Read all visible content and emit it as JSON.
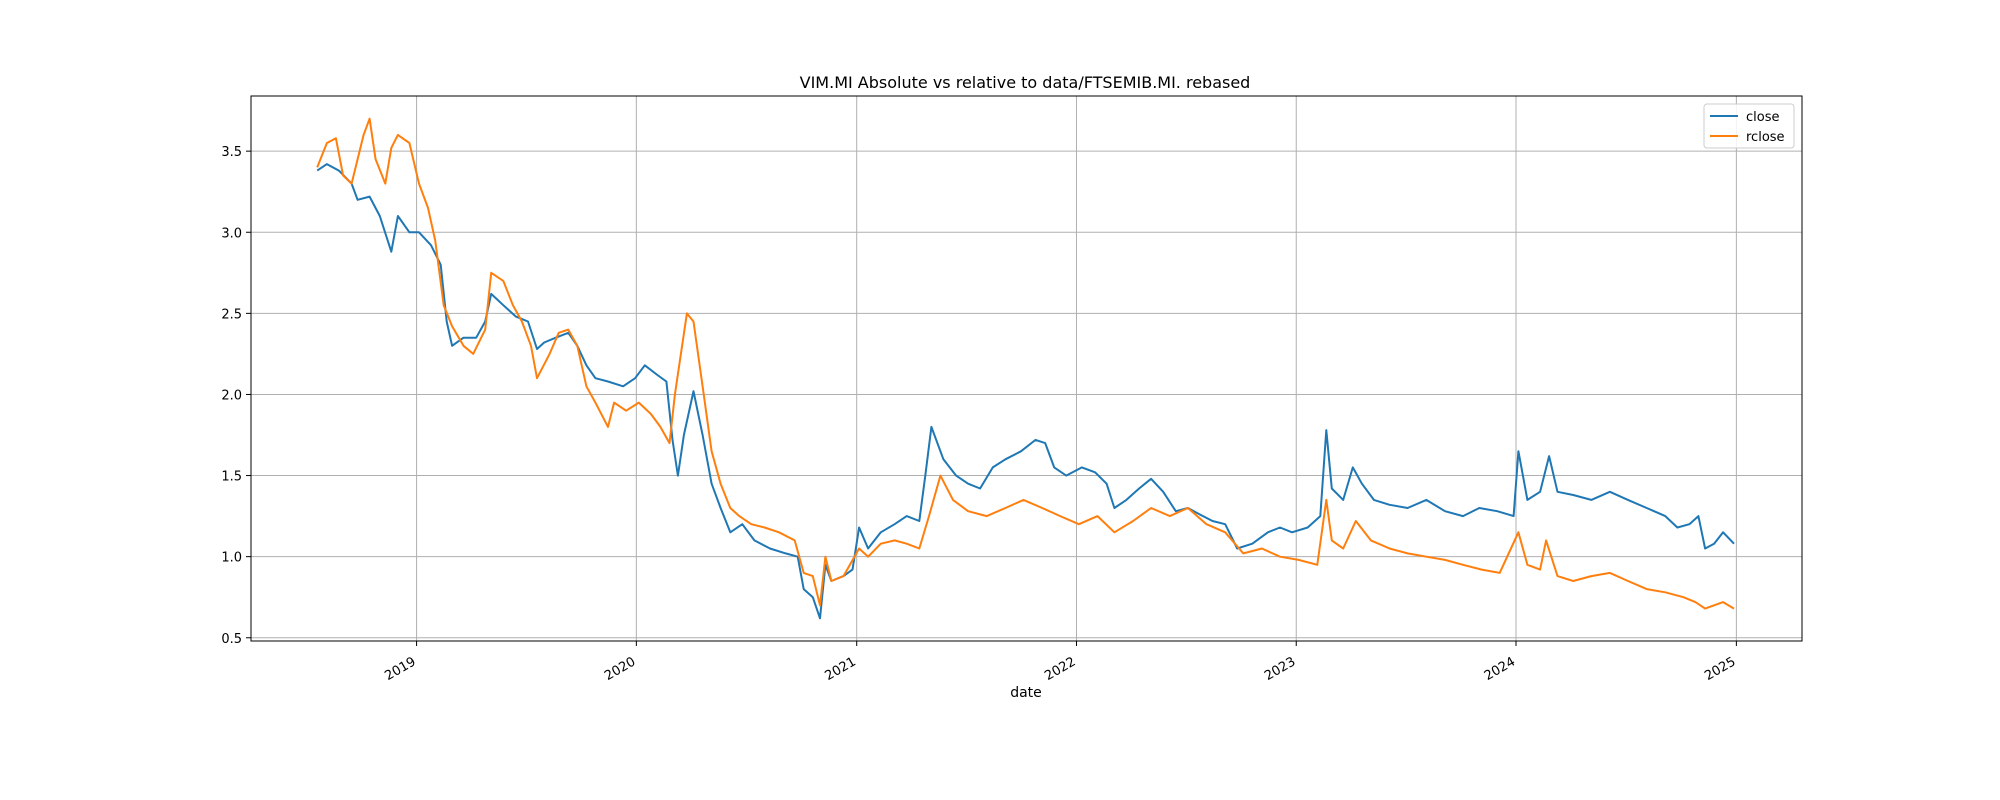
{
  "chart_data": {
    "type": "line",
    "title": "VIM.MI Absolute vs relative to data/FTSEMIB.MI. rebased",
    "xlabel": "date",
    "ylabel": "",
    "xlim": [
      "2018-04-01",
      "2025-04-20"
    ],
    "ylim": [
      0.48,
      3.84
    ],
    "x_ticks": [
      "2019-01-01",
      "2020-01-01",
      "2021-01-01",
      "2022-01-01",
      "2023-01-01",
      "2024-01-01",
      "2025-01-01"
    ],
    "x_tick_labels": [
      "2019",
      "2020",
      "2021",
      "2022",
      "2023",
      "2024",
      "2025"
    ],
    "y_ticks": [
      0.5,
      1.0,
      1.5,
      2.0,
      2.5,
      3.0,
      3.5
    ],
    "y_tick_labels": [
      "0.5",
      "1.0",
      "1.5",
      "2.0",
      "2.5",
      "3.0",
      "3.5"
    ],
    "grid": true,
    "legend_position": "top-right",
    "series": [
      {
        "name": "close",
        "color": "#1f77b4",
        "points": [
          [
            "2018-07-20",
            3.38
          ],
          [
            "2018-08-05",
            3.42
          ],
          [
            "2018-08-25",
            3.38
          ],
          [
            "2018-09-15",
            3.3
          ],
          [
            "2018-09-25",
            3.2
          ],
          [
            "2018-10-15",
            3.22
          ],
          [
            "2018-11-01",
            3.1
          ],
          [
            "2018-11-20",
            2.88
          ],
          [
            "2018-12-01",
            3.1
          ],
          [
            "2018-12-20",
            3.0
          ],
          [
            "2019-01-05",
            3.0
          ],
          [
            "2019-01-25",
            2.92
          ],
          [
            "2019-02-10",
            2.8
          ],
          [
            "2019-02-20",
            2.45
          ],
          [
            "2019-03-01",
            2.3
          ],
          [
            "2019-03-20",
            2.35
          ],
          [
            "2019-04-10",
            2.35
          ],
          [
            "2019-04-25",
            2.45
          ],
          [
            "2019-05-05",
            2.62
          ],
          [
            "2019-05-25",
            2.55
          ],
          [
            "2019-06-15",
            2.48
          ],
          [
            "2019-07-05",
            2.45
          ],
          [
            "2019-07-20",
            2.28
          ],
          [
            "2019-08-01",
            2.32
          ],
          [
            "2019-08-20",
            2.35
          ],
          [
            "2019-09-10",
            2.38
          ],
          [
            "2019-09-25",
            2.3
          ],
          [
            "2019-10-10",
            2.18
          ],
          [
            "2019-10-25",
            2.1
          ],
          [
            "2019-11-15",
            2.08
          ],
          [
            "2019-12-10",
            2.05
          ],
          [
            "2019-12-30",
            2.1
          ],
          [
            "2020-01-15",
            2.18
          ],
          [
            "2020-02-05",
            2.12
          ],
          [
            "2020-02-20",
            2.08
          ],
          [
            "2020-03-01",
            1.72
          ],
          [
            "2020-03-10",
            1.5
          ],
          [
            "2020-03-20",
            1.75
          ],
          [
            "2020-04-05",
            2.02
          ],
          [
            "2020-04-20",
            1.75
          ],
          [
            "2020-05-05",
            1.45
          ],
          [
            "2020-05-20",
            1.3
          ],
          [
            "2020-06-05",
            1.15
          ],
          [
            "2020-06-25",
            1.2
          ],
          [
            "2020-07-15",
            1.1
          ],
          [
            "2020-08-10",
            1.05
          ],
          [
            "2020-09-05",
            1.02
          ],
          [
            "2020-09-25",
            1.0
          ],
          [
            "2020-10-05",
            0.8
          ],
          [
            "2020-10-20",
            0.75
          ],
          [
            "2020-11-01",
            0.62
          ],
          [
            "2020-11-10",
            0.95
          ],
          [
            "2020-11-20",
            0.85
          ],
          [
            "2020-12-10",
            0.88
          ],
          [
            "2020-12-25",
            0.92
          ],
          [
            "2021-01-05",
            1.18
          ],
          [
            "2021-01-20",
            1.05
          ],
          [
            "2021-02-10",
            1.15
          ],
          [
            "2021-03-05",
            1.2
          ],
          [
            "2021-03-25",
            1.25
          ],
          [
            "2021-04-15",
            1.22
          ],
          [
            "2021-04-25",
            1.5
          ],
          [
            "2021-05-05",
            1.8
          ],
          [
            "2021-05-25",
            1.6
          ],
          [
            "2021-06-15",
            1.5
          ],
          [
            "2021-07-05",
            1.45
          ],
          [
            "2021-07-25",
            1.42
          ],
          [
            "2021-08-15",
            1.55
          ],
          [
            "2021-09-05",
            1.6
          ],
          [
            "2021-10-01",
            1.65
          ],
          [
            "2021-10-25",
            1.72
          ],
          [
            "2021-11-10",
            1.7
          ],
          [
            "2021-11-25",
            1.55
          ],
          [
            "2021-12-15",
            1.5
          ],
          [
            "2022-01-10",
            1.55
          ],
          [
            "2022-02-01",
            1.52
          ],
          [
            "2022-02-20",
            1.45
          ],
          [
            "2022-03-05",
            1.3
          ],
          [
            "2022-03-25",
            1.35
          ],
          [
            "2022-04-15",
            1.42
          ],
          [
            "2022-05-05",
            1.48
          ],
          [
            "2022-05-25",
            1.4
          ],
          [
            "2022-06-15",
            1.28
          ],
          [
            "2022-07-05",
            1.3
          ],
          [
            "2022-07-25",
            1.26
          ],
          [
            "2022-08-15",
            1.22
          ],
          [
            "2022-09-05",
            1.2
          ],
          [
            "2022-09-25",
            1.05
          ],
          [
            "2022-10-20",
            1.08
          ],
          [
            "2022-11-15",
            1.15
          ],
          [
            "2022-12-05",
            1.18
          ],
          [
            "2022-12-25",
            1.15
          ],
          [
            "2023-01-20",
            1.18
          ],
          [
            "2023-02-10",
            1.25
          ],
          [
            "2023-02-20",
            1.78
          ],
          [
            "2023-03-01",
            1.42
          ],
          [
            "2023-03-20",
            1.35
          ],
          [
            "2023-04-05",
            1.55
          ],
          [
            "2023-04-20",
            1.45
          ],
          [
            "2023-05-10",
            1.35
          ],
          [
            "2023-06-05",
            1.32
          ],
          [
            "2023-07-05",
            1.3
          ],
          [
            "2023-08-05",
            1.35
          ],
          [
            "2023-09-05",
            1.28
          ],
          [
            "2023-10-05",
            1.25
          ],
          [
            "2023-11-01",
            1.3
          ],
          [
            "2023-12-01",
            1.28
          ],
          [
            "2023-12-28",
            1.25
          ],
          [
            "2024-01-05",
            1.65
          ],
          [
            "2024-01-20",
            1.35
          ],
          [
            "2024-02-10",
            1.4
          ],
          [
            "2024-02-25",
            1.62
          ],
          [
            "2024-03-10",
            1.4
          ],
          [
            "2024-04-05",
            1.38
          ],
          [
            "2024-05-05",
            1.35
          ],
          [
            "2024-06-05",
            1.4
          ],
          [
            "2024-07-05",
            1.35
          ],
          [
            "2024-08-05",
            1.3
          ],
          [
            "2024-09-05",
            1.25
          ],
          [
            "2024-09-25",
            1.18
          ],
          [
            "2024-10-15",
            1.2
          ],
          [
            "2024-10-30",
            1.25
          ],
          [
            "2024-11-10",
            1.05
          ],
          [
            "2024-11-25",
            1.08
          ],
          [
            "2024-12-10",
            1.15
          ],
          [
            "2024-12-28",
            1.08
          ]
        ]
      },
      {
        "name": "rclose",
        "color": "#ff7f0e",
        "points": [
          [
            "2018-07-20",
            3.4
          ],
          [
            "2018-08-05",
            3.55
          ],
          [
            "2018-08-20",
            3.58
          ],
          [
            "2018-09-01",
            3.35
          ],
          [
            "2018-09-15",
            3.3
          ],
          [
            "2018-09-25",
            3.45
          ],
          [
            "2018-10-05",
            3.6
          ],
          [
            "2018-10-15",
            3.7
          ],
          [
            "2018-10-25",
            3.45
          ],
          [
            "2018-11-10",
            3.3
          ],
          [
            "2018-11-20",
            3.52
          ],
          [
            "2018-12-01",
            3.6
          ],
          [
            "2018-12-20",
            3.55
          ],
          [
            "2019-01-05",
            3.3
          ],
          [
            "2019-01-20",
            3.15
          ],
          [
            "2019-02-01",
            2.95
          ],
          [
            "2019-02-15",
            2.55
          ],
          [
            "2019-03-01",
            2.42
          ],
          [
            "2019-03-20",
            2.3
          ],
          [
            "2019-04-05",
            2.25
          ],
          [
            "2019-04-25",
            2.4
          ],
          [
            "2019-05-05",
            2.75
          ],
          [
            "2019-05-25",
            2.7
          ],
          [
            "2019-06-10",
            2.55
          ],
          [
            "2019-06-25",
            2.45
          ],
          [
            "2019-07-10",
            2.3
          ],
          [
            "2019-07-20",
            2.1
          ],
          [
            "2019-08-10",
            2.25
          ],
          [
            "2019-08-25",
            2.38
          ],
          [
            "2019-09-10",
            2.4
          ],
          [
            "2019-09-25",
            2.3
          ],
          [
            "2019-10-10",
            2.05
          ],
          [
            "2019-10-25",
            1.95
          ],
          [
            "2019-11-15",
            1.8
          ],
          [
            "2019-11-25",
            1.95
          ],
          [
            "2019-12-15",
            1.9
          ],
          [
            "2020-01-05",
            1.95
          ],
          [
            "2020-01-25",
            1.88
          ],
          [
            "2020-02-10",
            1.8
          ],
          [
            "2020-02-25",
            1.7
          ],
          [
            "2020-03-05",
            2.0
          ],
          [
            "2020-03-15",
            2.25
          ],
          [
            "2020-03-25",
            2.5
          ],
          [
            "2020-04-05",
            2.45
          ],
          [
            "2020-04-20",
            2.05
          ],
          [
            "2020-05-05",
            1.65
          ],
          [
            "2020-05-20",
            1.45
          ],
          [
            "2020-06-05",
            1.3
          ],
          [
            "2020-06-20",
            1.25
          ],
          [
            "2020-07-10",
            1.2
          ],
          [
            "2020-08-01",
            1.18
          ],
          [
            "2020-08-25",
            1.15
          ],
          [
            "2020-09-20",
            1.1
          ],
          [
            "2020-10-05",
            0.9
          ],
          [
            "2020-10-20",
            0.88
          ],
          [
            "2020-11-01",
            0.7
          ],
          [
            "2020-11-10",
            1.0
          ],
          [
            "2020-11-20",
            0.85
          ],
          [
            "2020-12-10",
            0.88
          ],
          [
            "2021-01-05",
            1.05
          ],
          [
            "2021-01-20",
            1.0
          ],
          [
            "2021-02-10",
            1.08
          ],
          [
            "2021-03-05",
            1.1
          ],
          [
            "2021-03-25",
            1.08
          ],
          [
            "2021-04-15",
            1.05
          ],
          [
            "2021-05-01",
            1.25
          ],
          [
            "2021-05-20",
            1.5
          ],
          [
            "2021-06-10",
            1.35
          ],
          [
            "2021-07-05",
            1.28
          ],
          [
            "2021-08-05",
            1.25
          ],
          [
            "2021-09-05",
            1.3
          ],
          [
            "2021-10-05",
            1.35
          ],
          [
            "2021-11-05",
            1.3
          ],
          [
            "2021-12-05",
            1.25
          ],
          [
            "2022-01-05",
            1.2
          ],
          [
            "2022-02-05",
            1.25
          ],
          [
            "2022-03-05",
            1.15
          ],
          [
            "2022-04-05",
            1.22
          ],
          [
            "2022-05-05",
            1.3
          ],
          [
            "2022-06-05",
            1.25
          ],
          [
            "2022-07-05",
            1.3
          ],
          [
            "2022-08-05",
            1.2
          ],
          [
            "2022-09-05",
            1.15
          ],
          [
            "2022-10-05",
            1.02
          ],
          [
            "2022-11-05",
            1.05
          ],
          [
            "2022-12-05",
            1.0
          ],
          [
            "2023-01-05",
            0.98
          ],
          [
            "2023-02-05",
            0.95
          ],
          [
            "2023-02-20",
            1.35
          ],
          [
            "2023-03-01",
            1.1
          ],
          [
            "2023-03-20",
            1.05
          ],
          [
            "2023-04-10",
            1.22
          ],
          [
            "2023-05-05",
            1.1
          ],
          [
            "2023-06-05",
            1.05
          ],
          [
            "2023-07-05",
            1.02
          ],
          [
            "2023-08-05",
            1.0
          ],
          [
            "2023-09-05",
            0.98
          ],
          [
            "2023-10-05",
            0.95
          ],
          [
            "2023-11-05",
            0.92
          ],
          [
            "2023-12-05",
            0.9
          ],
          [
            "2024-01-05",
            1.15
          ],
          [
            "2024-01-20",
            0.95
          ],
          [
            "2024-02-10",
            0.92
          ],
          [
            "2024-02-20",
            1.1
          ],
          [
            "2024-03-10",
            0.88
          ],
          [
            "2024-04-05",
            0.85
          ],
          [
            "2024-05-05",
            0.88
          ],
          [
            "2024-06-05",
            0.9
          ],
          [
            "2024-07-05",
            0.85
          ],
          [
            "2024-08-05",
            0.8
          ],
          [
            "2024-09-05",
            0.78
          ],
          [
            "2024-10-05",
            0.75
          ],
          [
            "2024-10-25",
            0.72
          ],
          [
            "2024-11-10",
            0.68
          ],
          [
            "2024-11-25",
            0.7
          ],
          [
            "2024-12-10",
            0.72
          ],
          [
            "2024-12-28",
            0.68
          ]
        ]
      }
    ]
  }
}
